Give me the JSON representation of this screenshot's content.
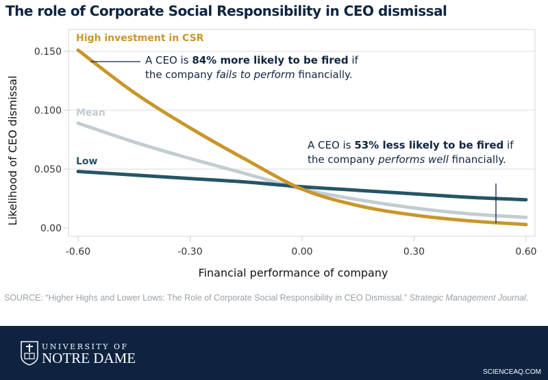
{
  "title": "The role of Corporate Social Responsibility in CEO dismissal",
  "chart_data": {
    "type": "line",
    "xlabel": "Financial performance of company",
    "ylabel": "Likelihood of CEO dismissal",
    "xlim": [
      -0.6,
      0.6
    ],
    "ylim": [
      0,
      0.16
    ],
    "xticks": [
      "-0.60",
      "-0.30",
      "0.00",
      "0.30",
      "0.60"
    ],
    "yticks": [
      "0.00",
      "0.050",
      "0.100",
      "0.150"
    ],
    "grid": "horizontal",
    "x": [
      -0.6,
      -0.45,
      -0.3,
      -0.15,
      0,
      0.15,
      0.3,
      0.45,
      0.6
    ],
    "series": [
      {
        "name": "High investment in CSR",
        "color": "#c9962a",
        "values": [
          0.151,
          0.115,
          0.085,
          0.058,
          0.033,
          0.019,
          0.011,
          0.006,
          0.003
        ]
      },
      {
        "name": "Mean",
        "color": "#c2cdd2",
        "values": [
          0.089,
          0.073,
          0.059,
          0.046,
          0.033,
          0.024,
          0.017,
          0.012,
          0.009
        ]
      },
      {
        "name": "Low",
        "color": "#245566",
        "values": [
          0.048,
          0.045,
          0.042,
          0.039,
          0.035,
          0.032,
          0.029,
          0.026,
          0.024
        ]
      }
    ],
    "annotations": [
      {
        "pre": "A CEO is ",
        "bold": "84% more likely to be fired",
        "mid": " if",
        "line2_pre": "the company ",
        "italic": "fails to perform",
        "line2_post": " financially."
      },
      {
        "pre": "A CEO is ",
        "bold": "53% less likely to be fired",
        "mid": " if",
        "line2_pre": "the company ",
        "italic": "performs well",
        "line2_post": " financially."
      }
    ]
  },
  "source": {
    "text": "SOURCE: “Higher Highs and Lower Lows: The Role of Corporate Social Responsibility in CEO Dismissal.” ",
    "journal": "Strategic Management Journal",
    "end": "."
  },
  "footer": {
    "logo_line1": "UNIVERSITY OF",
    "logo_line2": "NOTRE DAME",
    "credit": "SCIENCEAQ.COM",
    "bg_color": "#0d2340"
  }
}
